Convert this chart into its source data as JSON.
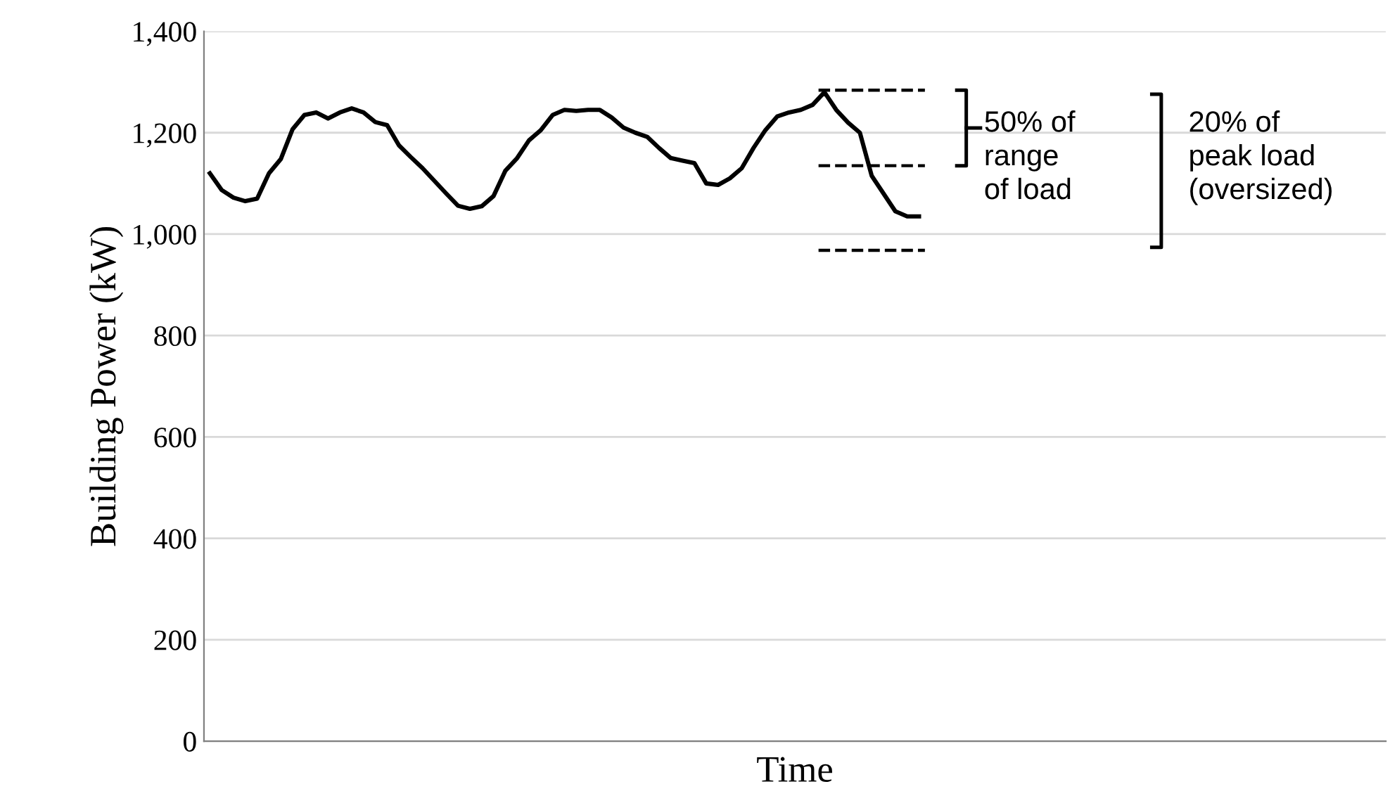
{
  "chart_data": {
    "type": "line",
    "xlabel": "Time",
    "ylabel": "Building Power (kW)",
    "categories": [
      null,
      null,
      null,
      null,
      null,
      null,
      null,
      null,
      null,
      null,
      null,
      null,
      null,
      null,
      null,
      null,
      null,
      null,
      null,
      null,
      null,
      null,
      null,
      null,
      null,
      null,
      null,
      null,
      null,
      null,
      null,
      null,
      null,
      null,
      null,
      null,
      null,
      null,
      null,
      null,
      null,
      null,
      null,
      null,
      null,
      null,
      null,
      null,
      null,
      null,
      null,
      null,
      null,
      null,
      null,
      null,
      null,
      null,
      null,
      null,
      null,
      null,
      null,
      null,
      null,
      null,
      null,
      null,
      null,
      null,
      null,
      null,
      null,
      null,
      null,
      null,
      null,
      null,
      null,
      null,
      null,
      null,
      null,
      null,
      null,
      null,
      null,
      null,
      null,
      null,
      null,
      null,
      null,
      null,
      null,
      null,
      null,
      null,
      null,
      null
    ],
    "series": [
      {
        "color": "#000000",
        "values": [
          1120,
          1087,
          1072,
          1065,
          1070,
          1120,
          1148,
          1207,
          1235,
          1240,
          1228,
          1240,
          1248,
          1240,
          1221,
          1215,
          1175,
          1152,
          1130,
          1105,
          1080,
          1056,
          1050,
          1055,
          1075,
          1125,
          1150,
          1185,
          1205,
          1235,
          1245,
          1243,
          1245,
          1245,
          1230,
          1210,
          1200,
          1192,
          1170,
          1150,
          1145,
          1140,
          1100,
          1097,
          1110,
          1130,
          1170,
          1205,
          1232,
          1240,
          1245,
          1255,
          1280,
          1245,
          1220,
          1200,
          1115,
          1080,
          1045,
          1035,
          1035,
          null,
          null,
          null,
          null,
          null,
          null,
          null,
          null,
          null,
          null,
          null,
          null,
          null,
          null,
          null,
          null,
          null,
          null,
          null,
          null,
          null,
          null,
          null,
          null,
          null,
          null,
          null,
          null,
          null,
          null,
          null,
          null,
          null,
          null,
          null,
          null,
          null,
          null,
          null
        ]
      }
    ],
    "ylim": [
      0,
      1400
    ],
    "yticks": [
      {
        "value": 0,
        "label": "0"
      },
      {
        "value": 200,
        "label": "200"
      },
      {
        "value": 400,
        "label": "400"
      },
      {
        "value": 600,
        "label": "600"
      },
      {
        "value": 800,
        "label": "800"
      },
      {
        "value": 1000,
        "label": "1,000"
      },
      {
        "value": 1200,
        "label": "1,200"
      },
      {
        "value": 1400,
        "label": "1,400"
      }
    ],
    "grid": "y",
    "legend": false,
    "marker": "none",
    "line_style": "solid",
    "ref_lines": [
      {
        "axis": "y",
        "value": 1284,
        "color": "#000000",
        "line_style": "dashed"
      },
      {
        "axis": "y",
        "value": 1135,
        "color": "#000000",
        "line_style": "dashed"
      },
      {
        "axis": "y",
        "value": 968,
        "color": "#000000",
        "line_style": "dashed"
      }
    ],
    "annotations": [
      "50% of\nrange\nof load",
      "20% of\npeak load\n(oversized)"
    ]
  }
}
